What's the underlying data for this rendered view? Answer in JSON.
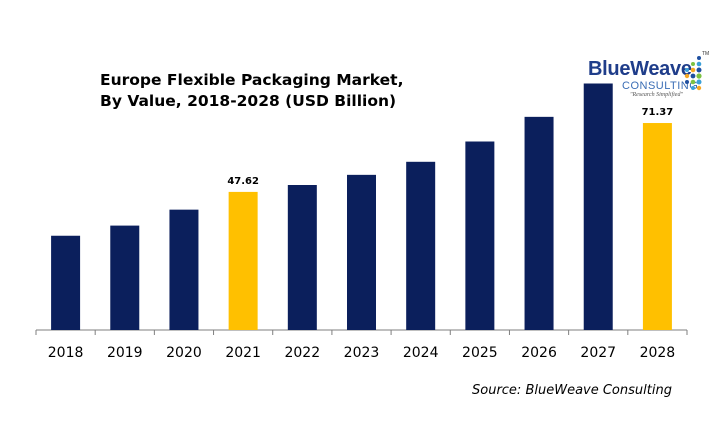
{
  "title_lines": [
    "Europe Flexible Packaging Market,",
    "By Value, 2018-2028 (USD Billion)"
  ],
  "logo": {
    "brand": "BlueWeave",
    "sub": "CONSULTING",
    "tagline": "\"Research Simplified\"",
    "tm": "TM"
  },
  "source": "Source: BlueWeave Consulting",
  "colors": {
    "bar_default": "#0b1f5c",
    "bar_highlight": "#ffc000",
    "axis": "#7f7f7f"
  },
  "chart_data": {
    "type": "bar",
    "title": "Europe Flexible Packaging Market, By Value, 2018-2028 (USD Billion)",
    "categories": [
      "2018",
      "2019",
      "2020",
      "2021",
      "2022",
      "2023",
      "2024",
      "2025",
      "2026",
      "2027",
      "2028"
    ],
    "values": [
      32.5,
      36.0,
      41.5,
      47.62,
      50.0,
      53.5,
      58.0,
      65.0,
      73.5,
      85.0,
      71.37
    ],
    "highlighted": [
      "2021",
      "2028"
    ],
    "data_labels": {
      "2021": "47.62",
      "2028": "71.37"
    },
    "ylim": [
      0,
      100
    ],
    "grid": false,
    "xlabel": "",
    "ylabel": ""
  }
}
